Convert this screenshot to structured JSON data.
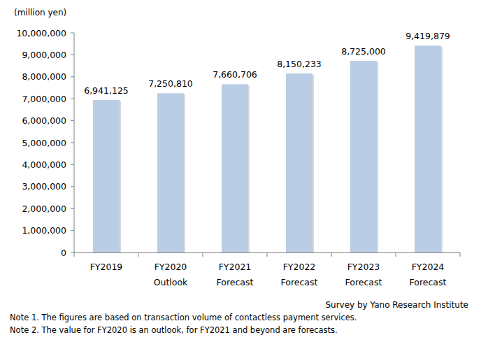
{
  "chart_data": {
    "type": "bar",
    "y_label": "(million yen)",
    "categories": [
      "FY2019",
      "FY2020 Outlook",
      "FY2021 Forecast",
      "FY2022 Forecast",
      "FY2023 Forecast",
      "FY2024 Forecast"
    ],
    "values": [
      6941125,
      7250810,
      7660706,
      8150233,
      8725000,
      9419879
    ],
    "value_labels": [
      "6,941,125",
      "7,250,810",
      "7,660,706",
      "8,150,233",
      "8,725,000",
      "9,419,879"
    ],
    "color": "#b9cde5",
    "ylim": [
      0,
      10000000
    ],
    "yticks": [
      0,
      {
        "value": 1000000,
        "label": "1,000,000"
      },
      {
        "value": 2000000,
        "label": "2,000,000"
      },
      {
        "value": 3000000,
        "label": "3,000,000"
      },
      {
        "value": 4000000,
        "label": "4,000,000"
      },
      {
        "value": 5000000,
        "label": "5,000,000"
      },
      {
        "value": 6000000,
        "label": "6,000,000"
      },
      {
        "value": 7000000,
        "label": "7,000,000"
      },
      {
        "value": 8000000,
        "label": "8,000,000"
      },
      {
        "value": 9000000,
        "label": "9,000,000"
      },
      {
        "value": 10000000,
        "label": "10,000,000"
      }
    ],
    "grid": false,
    "data_labels": true,
    "source": "Survey by Yano Research Institute",
    "notes": [
      "Note 1. The figures are based on transaction volume of contactless payment services.",
      "Note 2. The value for FY2020 is an outlook, for FY2021 and beyond are forecasts."
    ]
  }
}
